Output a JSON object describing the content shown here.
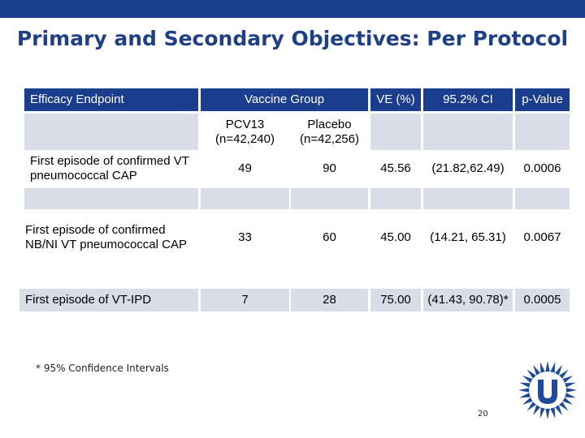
{
  "slide": {
    "title": "Primary and Secondary Objectives: Per Protocol",
    "footnote": "* 95% Confidence Intervals",
    "page_number": "20",
    "logo_icon": "university-logo-icon",
    "colors": {
      "header_bg": "#1a3d8e",
      "row_bg": "#d9dde8",
      "title": "#1f3f86"
    }
  },
  "table": {
    "headers": {
      "endpoint": "Efficacy Endpoint",
      "vaccine_group": "Vaccine Group",
      "ve": "VE (%)",
      "ci": "95.2% CI",
      "p": "p-Value"
    },
    "subheaders": {
      "pcv13_l1": "PCV13",
      "pcv13_l2": "(n=42,240)",
      "placebo_l1": "Placebo",
      "placebo_l2": "(n=42,256)"
    },
    "rows": [
      {
        "endpoint": "First episode of confirmed VT pneumococcal CAP",
        "pcv13": "49",
        "placebo": "90",
        "ve": "45.56",
        "ci": "(21.82,62.49)",
        "p": "0.0006"
      },
      {
        "endpoint": "First episode of confirmed NB/NI VT pneumococcal CAP",
        "pcv13": "33",
        "placebo": "60",
        "ve": "45.00",
        "ci": "(14.21, 65.31)",
        "p": "0.0067"
      },
      {
        "endpoint": "First episode of VT-IPD",
        "pcv13": "7",
        "placebo": "28",
        "ve": "75.00",
        "ci": "(41.43, 90.78)*",
        "p": "0.0005"
      }
    ]
  }
}
